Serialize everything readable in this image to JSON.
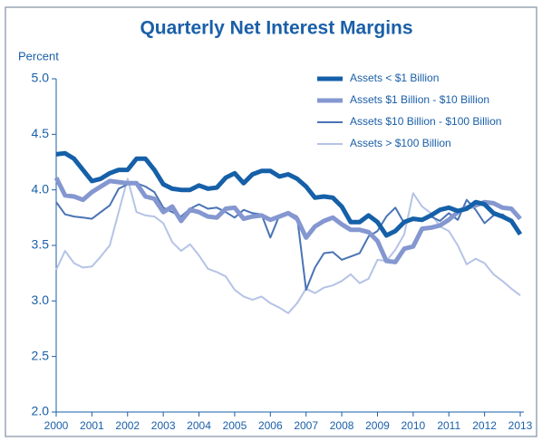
{
  "chart_data": {
    "type": "line",
    "title": "Quarterly Net Interest Margins",
    "y_label": "Percent",
    "categories": [
      "2000",
      null,
      null,
      null,
      "2001",
      null,
      null,
      null,
      "2002",
      null,
      null,
      null,
      "2003",
      null,
      null,
      null,
      "2004",
      null,
      null,
      null,
      "2005",
      null,
      null,
      null,
      "2006",
      null,
      null,
      null,
      "2007",
      null,
      null,
      null,
      "2008",
      null,
      null,
      null,
      "2009",
      null,
      null,
      null,
      "2010",
      null,
      null,
      null,
      "2011",
      null,
      null,
      null,
      "2012",
      null,
      null,
      null,
      "2013"
    ],
    "ylim": [
      2.0,
      5.0
    ],
    "yticks": [
      {
        "value": 2,
        "label": "2.0"
      },
      {
        "value": 2.5,
        "label": "2.5"
      },
      {
        "value": 3,
        "label": "3.0"
      },
      {
        "value": 3.5,
        "label": "3.5"
      },
      {
        "value": 4,
        "label": "4.0"
      },
      {
        "value": 4.5,
        "label": "4.5"
      },
      {
        "value": 5,
        "label": "5.0"
      }
    ],
    "grid": false,
    "legend": "upper right",
    "series": [
      {
        "name": "Assets < $1 Billion",
        "color": "#1560a8",
        "width": 5,
        "values": [
          4.32,
          4.33,
          4.28,
          4.18,
          4.08,
          4.1,
          4.15,
          4.18,
          4.18,
          4.28,
          4.28,
          4.18,
          4.05,
          4.01,
          4.0,
          4.0,
          4.04,
          4.01,
          4.02,
          4.11,
          4.15,
          4.06,
          4.14,
          4.17,
          4.17,
          4.12,
          4.14,
          4.1,
          4.03,
          3.93,
          3.94,
          3.93,
          3.85,
          3.71,
          3.71,
          3.77,
          3.71,
          3.59,
          3.63,
          3.71,
          3.74,
          3.73,
          3.77,
          3.82,
          3.84,
          3.81,
          3.83,
          3.89,
          3.87,
          3.79,
          3.76,
          3.72,
          3.6
        ]
      },
      {
        "name": "Assets $1 Billion - $10 Billion",
        "color": "#8497d0",
        "width": 5,
        "values": [
          4.11,
          3.95,
          3.94,
          3.91,
          3.98,
          4.03,
          4.08,
          4.07,
          4.06,
          4.06,
          3.94,
          3.92,
          3.8,
          3.85,
          3.72,
          3.82,
          3.8,
          3.76,
          3.75,
          3.83,
          3.84,
          3.74,
          3.76,
          3.77,
          3.73,
          3.76,
          3.79,
          3.74,
          3.57,
          3.67,
          3.72,
          3.75,
          3.69,
          3.64,
          3.64,
          3.62,
          3.54,
          3.36,
          3.35,
          3.47,
          3.49,
          3.65,
          3.66,
          3.68,
          3.73,
          3.8,
          3.84,
          3.86,
          3.89,
          3.88,
          3.84,
          3.83,
          3.74
        ]
      },
      {
        "name": "Assets $10 Billion - $100 Billion",
        "color": "#4a73b5",
        "width": 2,
        "values": [
          3.89,
          3.78,
          3.76,
          3.75,
          3.74,
          3.8,
          3.86,
          4.01,
          4.05,
          4.06,
          4.03,
          3.98,
          3.84,
          3.8,
          3.76,
          3.83,
          3.87,
          3.83,
          3.84,
          3.8,
          3.75,
          3.82,
          3.79,
          3.78,
          3.57,
          3.77,
          3.8,
          3.76,
          3.1,
          3.3,
          3.43,
          3.44,
          3.37,
          3.4,
          3.43,
          3.58,
          3.63,
          3.76,
          3.84,
          3.7,
          3.73,
          3.72,
          3.76,
          3.72,
          3.79,
          3.73,
          3.91,
          3.82,
          3.7,
          3.77,
          3.78,
          3.72,
          3.62
        ]
      },
      {
        "name": "Assets > $100 Billion",
        "color": "#b5c3e6",
        "width": 2,
        "values": [
          3.28,
          3.45,
          3.34,
          3.3,
          3.31,
          3.4,
          3.5,
          3.8,
          4.1,
          3.8,
          3.77,
          3.76,
          3.7,
          3.53,
          3.45,
          3.51,
          3.41,
          3.29,
          3.26,
          3.22,
          3.1,
          3.04,
          3.01,
          3.04,
          2.98,
          2.94,
          2.89,
          2.98,
          3.11,
          3.07,
          3.12,
          3.14,
          3.18,
          3.24,
          3.16,
          3.2,
          3.37,
          3.36,
          3.46,
          3.6,
          3.97,
          3.85,
          3.79,
          3.67,
          3.63,
          3.5,
          3.33,
          3.38,
          3.34,
          3.24,
          3.18,
          3.11,
          3.05
        ]
      }
    ]
  }
}
